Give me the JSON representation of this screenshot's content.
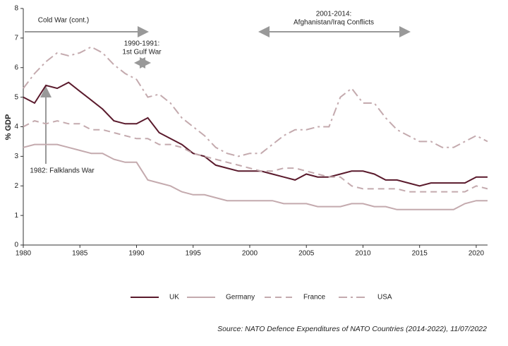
{
  "chart_data": {
    "type": "line",
    "ylabel": "% GDP",
    "source": "Source: NATO Defence Expenditures of NATO Countries (2014-2022), 11/07/2022",
    "annotations": {
      "cold_war": "Cold War (cont.)",
      "gulf_war": [
        "1990-1991:",
        "1st Gulf War"
      ],
      "afghanistan": [
        "2001-2014:",
        "Afghanistan/Iraq Conflicts"
      ],
      "falklands": "1982: Falklands War"
    },
    "x": [
      1980,
      1981,
      1982,
      1983,
      1984,
      1985,
      1986,
      1987,
      1988,
      1989,
      1990,
      1991,
      1992,
      1993,
      1994,
      1995,
      1996,
      1997,
      1998,
      1999,
      2000,
      2001,
      2002,
      2003,
      2004,
      2005,
      2006,
      2007,
      2008,
      2009,
      2010,
      2011,
      2012,
      2013,
      2014,
      2015,
      2016,
      2017,
      2018,
      2019,
      2020,
      2021
    ],
    "xlim": [
      1980,
      2021
    ],
    "xticks": [
      1980,
      1985,
      1990,
      1995,
      2000,
      2005,
      2010,
      2015,
      2020
    ],
    "ylim": [
      0,
      8
    ],
    "yticks": [
      0,
      1,
      2,
      3,
      4,
      5,
      6,
      7,
      8
    ],
    "series": [
      {
        "name": "UK",
        "color": "#5a1a2c",
        "dash": "solid",
        "values": [
          5.0,
          4.8,
          5.4,
          5.3,
          5.5,
          5.2,
          4.9,
          4.6,
          4.2,
          4.1,
          4.1,
          4.3,
          3.8,
          3.6,
          3.4,
          3.1,
          3.0,
          2.7,
          2.6,
          2.5,
          2.5,
          2.5,
          2.4,
          2.3,
          2.2,
          2.4,
          2.3,
          2.3,
          2.4,
          2.5,
          2.5,
          2.4,
          2.2,
          2.2,
          2.1,
          2.0,
          2.1,
          2.1,
          2.1,
          2.1,
          2.3,
          2.3
        ]
      },
      {
        "name": "Germany",
        "color": "#c4aaae",
        "dash": "solid",
        "values": [
          3.3,
          3.4,
          3.4,
          3.4,
          3.3,
          3.2,
          3.1,
          3.1,
          2.9,
          2.8,
          2.8,
          2.2,
          2.1,
          2.0,
          1.8,
          1.7,
          1.7,
          1.6,
          1.5,
          1.5,
          1.5,
          1.5,
          1.5,
          1.4,
          1.4,
          1.4,
          1.3,
          1.3,
          1.3,
          1.4,
          1.4,
          1.3,
          1.3,
          1.2,
          1.2,
          1.2,
          1.2,
          1.2,
          1.2,
          1.4,
          1.5,
          1.5
        ]
      },
      {
        "name": "France",
        "color": "#c4aaae",
        "dash": "dashed",
        "values": [
          4.0,
          4.2,
          4.1,
          4.2,
          4.1,
          4.1,
          3.9,
          3.9,
          3.8,
          3.7,
          3.6,
          3.6,
          3.4,
          3.4,
          3.3,
          3.1,
          3.0,
          2.9,
          2.8,
          2.7,
          2.6,
          2.5,
          2.5,
          2.6,
          2.6,
          2.5,
          2.4,
          2.3,
          2.3,
          2.0,
          1.9,
          1.9,
          1.9,
          1.9,
          1.8,
          1.8,
          1.8,
          1.8,
          1.8,
          1.8,
          2.0,
          1.9
        ]
      },
      {
        "name": "USA",
        "color": "#c4aaae",
        "dash": "dashdot",
        "values": [
          5.3,
          5.8,
          6.2,
          6.5,
          6.4,
          6.5,
          6.7,
          6.5,
          6.1,
          5.8,
          5.6,
          5.0,
          5.1,
          4.8,
          4.3,
          4.0,
          3.7,
          3.3,
          3.1,
          3.0,
          3.1,
          3.1,
          3.4,
          3.7,
          3.9,
          3.9,
          4.0,
          4.0,
          5.0,
          5.3,
          4.8,
          4.8,
          4.3,
          3.9,
          3.7,
          3.5,
          3.5,
          3.3,
          3.3,
          3.5,
          3.7,
          3.5
        ]
      }
    ]
  }
}
